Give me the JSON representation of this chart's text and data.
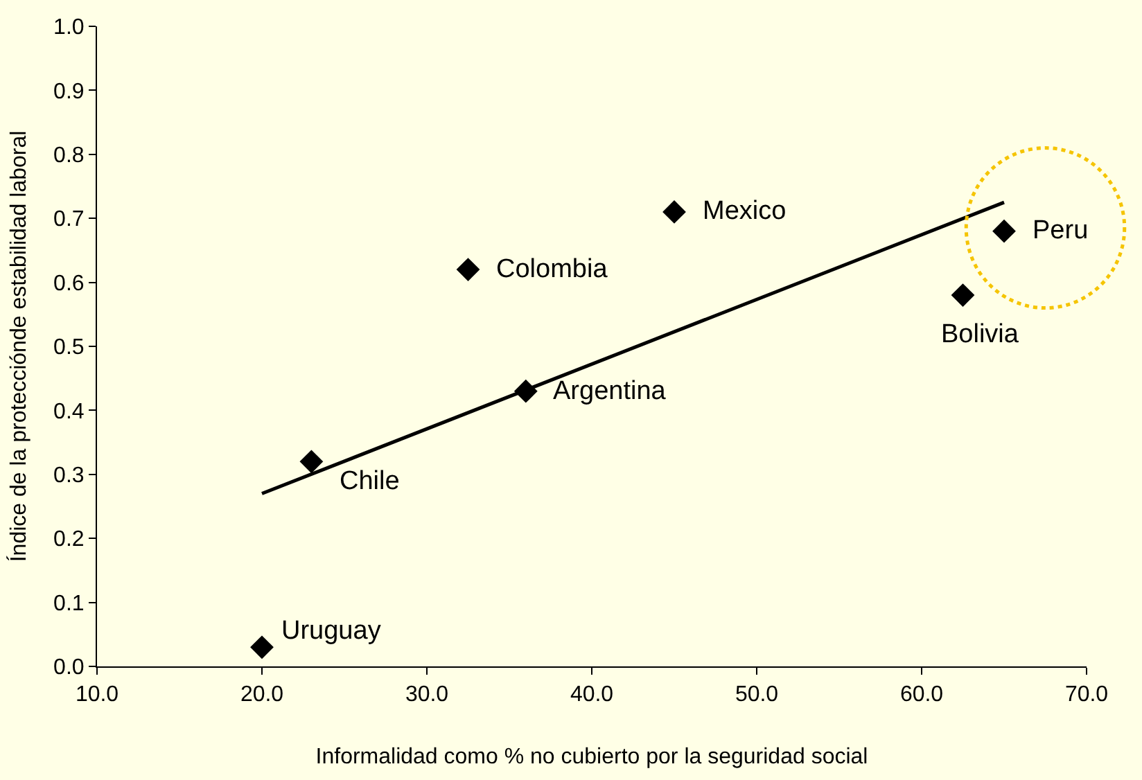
{
  "chart_data": {
    "type": "scatter",
    "xlabel": "Informalidad como % no cubierto por la seguridad social",
    "ylabel": "Índice de la protecciónde estabilidad laboral",
    "xlim": [
      10,
      70
    ],
    "xticks": [
      {
        "value": 10,
        "label": "10.0"
      },
      {
        "value": 20,
        "label": "20.0"
      },
      {
        "value": 30,
        "label": "30.0"
      },
      {
        "value": 40,
        "label": "40.0"
      },
      {
        "value": 50,
        "label": "50.0"
      },
      {
        "value": 60,
        "label": "60.0"
      },
      {
        "value": 70,
        "label": "70.0"
      }
    ],
    "ylim": [
      0,
      1
    ],
    "yticks": [
      {
        "value": 0,
        "label": "0.0"
      },
      {
        "value": 0.1,
        "label": "0.1"
      },
      {
        "value": 0.2,
        "label": "0.2"
      },
      {
        "value": 0.3,
        "label": "0.3"
      },
      {
        "value": 0.4,
        "label": "0.4"
      },
      {
        "value": 0.5,
        "label": "0.5"
      },
      {
        "value": 0.6,
        "label": "0.6"
      },
      {
        "value": 0.7,
        "label": "0.7"
      },
      {
        "value": 0.8,
        "label": "0.8"
      },
      {
        "value": 0.9,
        "label": "0.9"
      },
      {
        "value": 1,
        "label": "1.0"
      }
    ],
    "grid": false,
    "marker": "diamond",
    "series": [
      {
        "color": "#000000",
        "x": [
          20,
          23,
          32.5,
          36,
          45,
          62.5,
          65
        ],
        "values": [
          0.03,
          0.32,
          0.62,
          0.43,
          0.71,
          0.58,
          0.68
        ]
      },
      {
        "type": "line",
        "color": "#000000",
        "line_style": "solid",
        "marker": "none",
        "x": [
          20,
          65
        ],
        "values": [
          0.27,
          0.725
        ]
      }
    ],
    "annotations": [
      {
        "text": "Uruguay",
        "x": 20,
        "y": 0.03
      },
      {
        "text": "Chile",
        "x": 23,
        "y": 0.32
      },
      {
        "text": "Colombia",
        "x": 32.5,
        "y": 0.62
      },
      {
        "text": "Argentina",
        "x": 36,
        "y": 0.43
      },
      {
        "text": "Mexico",
        "x": 45,
        "y": 0.71
      },
      {
        "text": "Bolivia",
        "x": 62.5,
        "y": 0.58
      },
      {
        "text": "Peru",
        "x": 65,
        "y": 0.68
      }
    ]
  }
}
